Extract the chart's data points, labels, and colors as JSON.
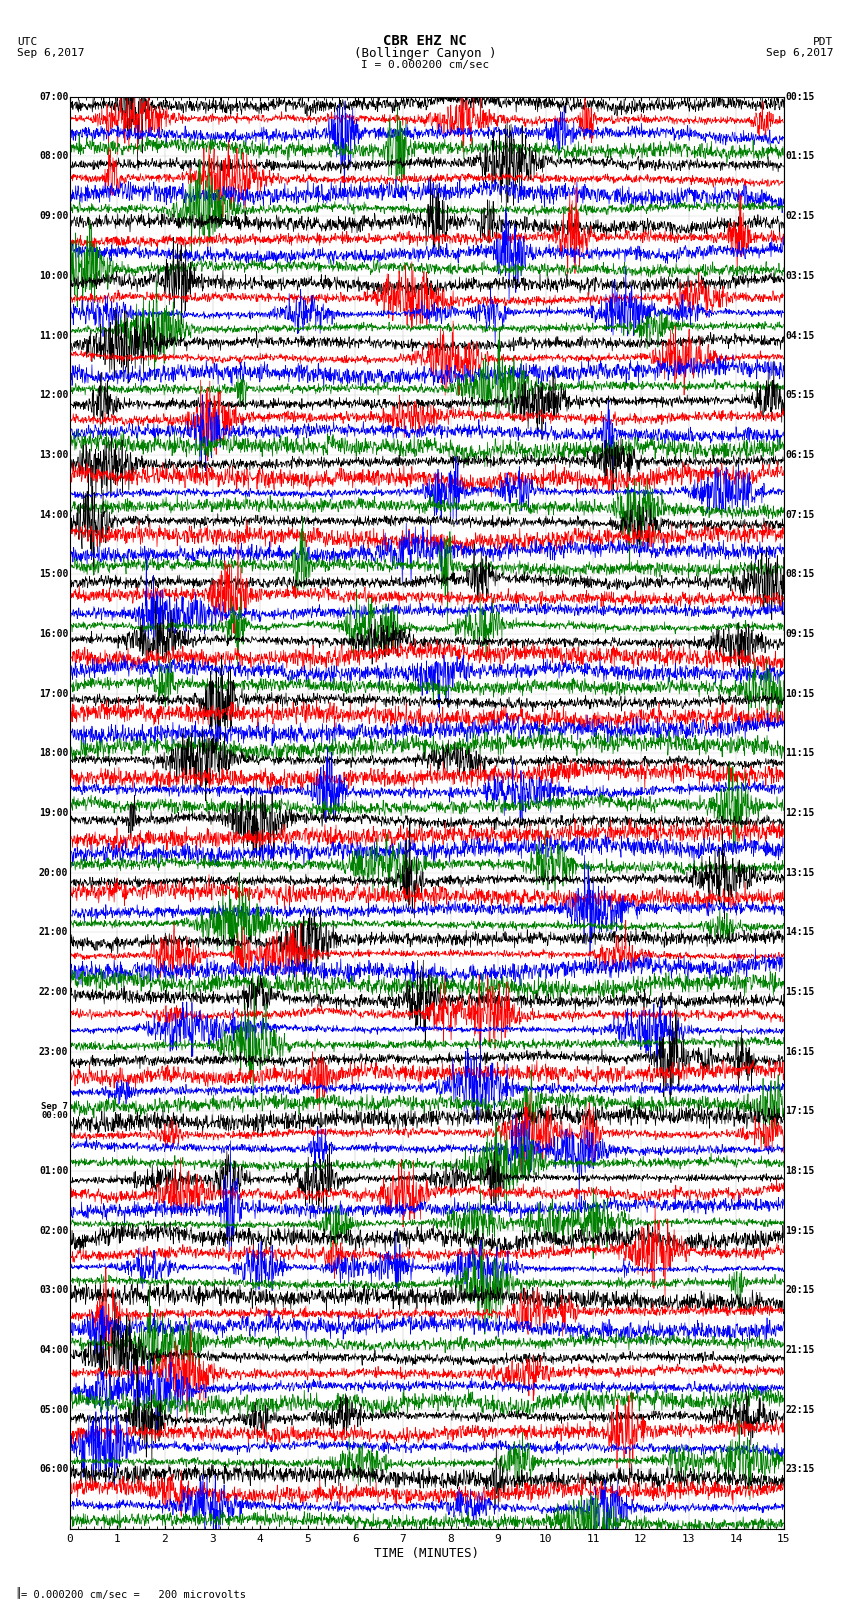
{
  "title_line1": "CBR EHZ NC",
  "title_line2": "(Bollinger Canyon )",
  "scale_label": "I = 0.000200 cm/sec",
  "utc_label": "UTC",
  "utc_date": "Sep 6,2017",
  "pdt_label": "PDT",
  "pdt_date": "Sep 6,2017",
  "left_times": [
    "07:00",
    "08:00",
    "09:00",
    "10:00",
    "11:00",
    "12:00",
    "13:00",
    "14:00",
    "15:00",
    "16:00",
    "17:00",
    "18:00",
    "19:00",
    "20:00",
    "21:00",
    "22:00",
    "23:00",
    "Sep 7\n00:00",
    "01:00",
    "02:00",
    "03:00",
    "04:00",
    "05:00",
    "06:00"
  ],
  "right_times": [
    "00:15",
    "01:15",
    "02:15",
    "03:15",
    "04:15",
    "05:15",
    "06:15",
    "07:15",
    "08:15",
    "09:15",
    "10:15",
    "11:15",
    "12:15",
    "13:15",
    "14:15",
    "15:15",
    "16:15",
    "17:15",
    "18:15",
    "19:15",
    "20:15",
    "21:15",
    "22:15",
    "23:15"
  ],
  "trace_colors": [
    "black",
    "red",
    "blue",
    "green"
  ],
  "xlabel": "TIME (MINUTES)",
  "xticks": [
    0,
    1,
    2,
    3,
    4,
    5,
    6,
    7,
    8,
    9,
    10,
    11,
    12,
    13,
    14,
    15
  ],
  "xmin": 0,
  "xmax": 15,
  "n_traces_per_row": 4,
  "n_rows": 24,
  "background_color": "white",
  "footnote": "= 0.000200 cm/sec =   200 microvolts",
  "seed": 42
}
